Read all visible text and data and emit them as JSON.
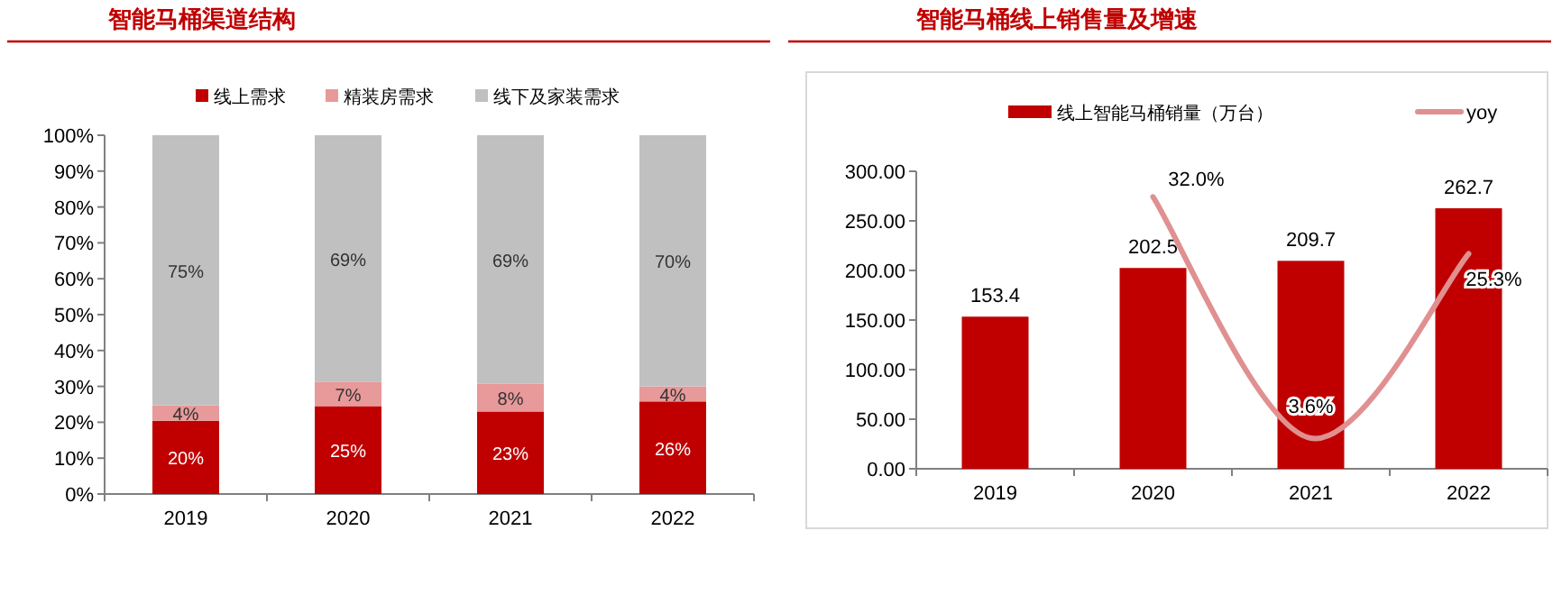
{
  "chart_data": [
    {
      "type": "bar",
      "title": "智能马桶渠道结构",
      "categories": [
        "2019",
        "2020",
        "2021",
        "2022"
      ],
      "stacked": true,
      "legend": "top",
      "series": [
        {
          "name": "线上需求",
          "color": "#c00000",
          "values": [
            20.4,
            24.5,
            23.0,
            25.8
          ],
          "value_labels": [
            "20%",
            "25%",
            "23%",
            "26%"
          ]
        },
        {
          "name": "精装房需求",
          "color": "#e8999a",
          "values": [
            4.3,
            6.8,
            7.7,
            4.2
          ],
          "value_labels": [
            "4%",
            "7%",
            "8%",
            "4%"
          ]
        },
        {
          "name": "线下及家装需求",
          "color": "#c0c0c0",
          "values": [
            75.3,
            68.7,
            69.3,
            70.0
          ],
          "value_labels": [
            "75%",
            "69%",
            "69%",
            "70%"
          ]
        }
      ],
      "ylim": [
        0,
        100
      ],
      "yticks": [
        {
          "value": 0,
          "label": "0%"
        },
        {
          "value": 10,
          "label": "10%"
        },
        {
          "value": 20,
          "label": "20%"
        },
        {
          "value": 30,
          "label": "30%"
        },
        {
          "value": 40,
          "label": "40%"
        },
        {
          "value": 50,
          "label": "50%"
        },
        {
          "value": 60,
          "label": "60%"
        },
        {
          "value": 70,
          "label": "70%"
        },
        {
          "value": 80,
          "label": "80%"
        },
        {
          "value": 90,
          "label": "90%"
        },
        {
          "value": 100,
          "label": "100%"
        }
      ]
    },
    {
      "type": "bar",
      "title": "智能马桶线上销售量及增速",
      "categories": [
        "2019",
        "2020",
        "2021",
        "2022"
      ],
      "legend": "top",
      "series": [
        {
          "name": "线上智能马桶销量（万台）",
          "color": "#c00000",
          "values": [
            153.4,
            202.5,
            209.7,
            262.7
          ],
          "value_labels": [
            "153.4",
            "202.5",
            "209.7",
            "262.7"
          ]
        },
        {
          "name": "yoy",
          "type": "line",
          "axis": "y2",
          "color": "#e09090",
          "values": [
            null,
            32.0,
            3.6,
            25.3
          ],
          "value_labels": [
            null,
            "32.0%",
            "3.6%",
            "25.3%"
          ]
        }
      ],
      "ylim": [
        0,
        300
      ],
      "yticks": [
        {
          "value": 0,
          "label": "0.00"
        },
        {
          "value": 50,
          "label": "50.00"
        },
        {
          "value": 100,
          "label": "100.00"
        },
        {
          "value": 150,
          "label": "150.00"
        },
        {
          "value": 200,
          "label": "200.00"
        },
        {
          "value": 250,
          "label": "250.00"
        },
        {
          "value": 300,
          "label": "300.00"
        }
      ],
      "y2lim": [
        0,
        35
      ]
    }
  ]
}
